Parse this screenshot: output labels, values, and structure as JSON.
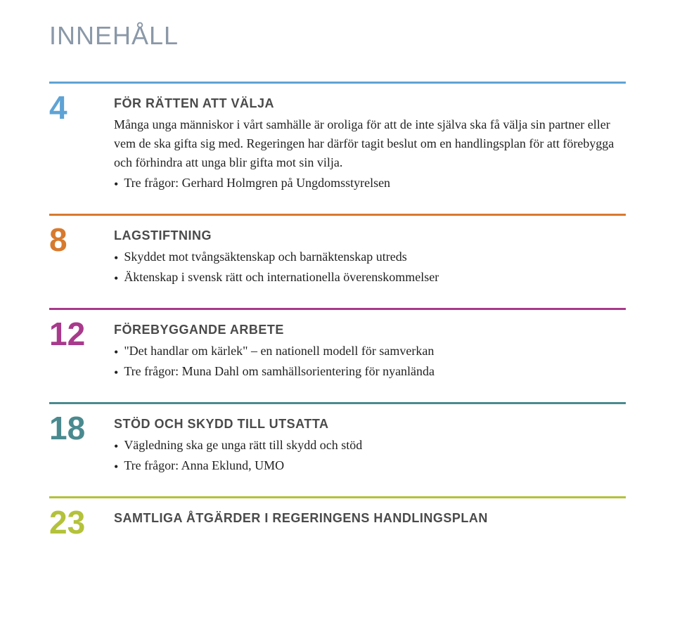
{
  "title": "INNEHÅLL",
  "title_color": "#8a98a8",
  "sections": [
    {
      "page": "4",
      "page_color": "#5ea3d5",
      "rule_color": "#5ea3d5",
      "heading": "FÖR RÄTTEN ATT VÄLJA",
      "paragraphs": [
        "Många unga människor i vårt samhälle är oroliga för att de inte själva ska få välja sin partner eller vem de ska gifta sig med. Regeringen har därför tagit beslut om en handlingsplan för att förebygga och förhindra att unga blir gifta mot sin vilja."
      ],
      "bullets": [
        "Tre frågor: Gerhard Holmgren på Ungdomsstyrelsen"
      ]
    },
    {
      "page": "8",
      "page_color": "#d77a2e",
      "rule_color": "#d77a2e",
      "heading": "LAGSTIFTNING",
      "paragraphs": [],
      "bullets": [
        "Skyddet mot tvångsäktenskap och barnäktenskap utreds",
        "Äktenskap i svensk rätt och internationella överenskommelser"
      ]
    },
    {
      "page": "12",
      "page_color": "#a83a8c",
      "rule_color": "#a83a8c",
      "heading": "FÖREBYGGANDE ARBETE",
      "paragraphs": [],
      "bullets": [
        "\"Det handlar om kärlek\" – en nationell modell för samverkan",
        "Tre frågor: Muna Dahl om samhällsorientering för nyanlända"
      ]
    },
    {
      "page": "18",
      "page_color": "#4a8a8f",
      "rule_color": "#4a8a8f",
      "heading": "STÖD OCH SKYDD TILL UTSATTA",
      "paragraphs": [],
      "bullets": [
        "Vägledning ska ge unga rätt till skydd och stöd",
        "Tre frågor: Anna Eklund, UMO"
      ]
    },
    {
      "page": "23",
      "page_color": "#b3c23a",
      "rule_color": "#b3c23a",
      "heading": "SAMTLIGA ÅTGÄRDER I REGERINGENS HANDLINGSPLAN",
      "paragraphs": [],
      "bullets": []
    }
  ]
}
